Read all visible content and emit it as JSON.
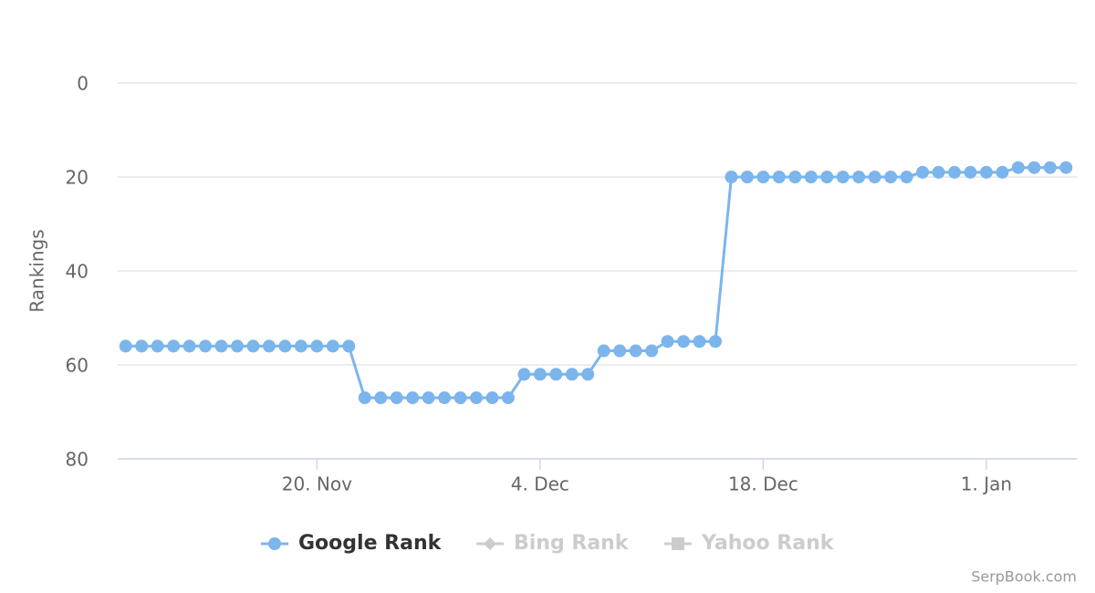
{
  "chart_data": {
    "type": "line",
    "y_axis_title": "Rankings",
    "ylim": [
      0,
      80
    ],
    "yticks": [
      0,
      20,
      40,
      60,
      80
    ],
    "y_reversed": true,
    "grid": true,
    "categories": [
      null,
      null,
      null,
      null,
      null,
      null,
      null,
      null,
      null,
      null,
      null,
      null,
      "20. Nov",
      null,
      null,
      null,
      null,
      null,
      null,
      null,
      null,
      null,
      null,
      null,
      null,
      null,
      "4. Dec",
      null,
      null,
      null,
      null,
      null,
      null,
      null,
      null,
      null,
      null,
      null,
      null,
      null,
      "18. Dec",
      null,
      null,
      null,
      null,
      null,
      null,
      null,
      null,
      null,
      null,
      null,
      null,
      null,
      "1. Jan",
      null,
      null,
      null,
      null,
      null
    ],
    "series": [
      {
        "name": "Google Rank",
        "color": "#7cb5ec",
        "marker": "circle",
        "visible": true,
        "values": [
          56,
          56,
          56,
          56,
          56,
          56,
          56,
          56,
          56,
          56,
          56,
          56,
          56,
          56,
          56,
          67,
          67,
          67,
          67,
          67,
          67,
          67,
          67,
          67,
          67,
          62,
          62,
          62,
          62,
          62,
          57,
          57,
          57,
          57,
          55,
          55,
          55,
          55,
          20,
          20,
          20,
          20,
          20,
          20,
          20,
          20,
          20,
          20,
          20,
          20,
          19,
          19,
          19,
          19,
          19,
          19,
          18,
          18,
          18,
          18
        ]
      },
      {
        "name": "Bing Rank",
        "marker": "diamond",
        "visible": false
      },
      {
        "name": "Yahoo Rank",
        "marker": "square",
        "visible": false
      }
    ],
    "legend": "bottom",
    "credits": "SerpBook.com"
  }
}
